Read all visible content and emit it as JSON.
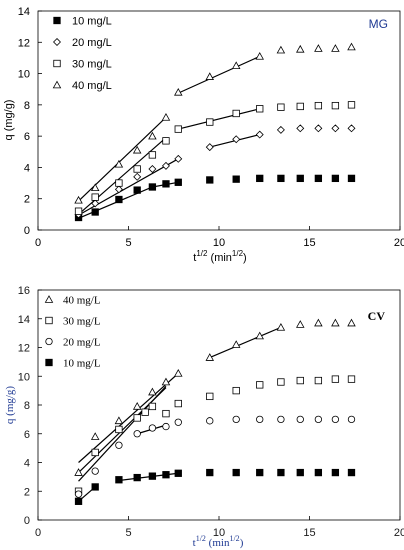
{
  "chart_data": [
    {
      "type": "scatter",
      "title": "MG",
      "xlabel": "t 1/2 (min1/2)",
      "xlabel_main": "t",
      "xlabel_sup": "1/2",
      "xlabel_unit": "(min",
      "xlabel_unit_sup": "1/2",
      "xlabel_unit_close": ")",
      "ylabel": "q (mg/g)",
      "xlim": [
        0,
        20
      ],
      "ylim": [
        0,
        14
      ],
      "xticks": [
        0,
        5,
        10,
        15,
        20
      ],
      "yticks": [
        0,
        2,
        4,
        6,
        8,
        10,
        12,
        14
      ],
      "xtick_labels": [
        "0",
        "5",
        "10",
        "15",
        "20"
      ],
      "ytick_labels": [
        "0",
        "2",
        "4",
        "6",
        "8",
        "10",
        "12",
        "14"
      ],
      "grid": false,
      "legend_position": "top-left",
      "series": [
        {
          "name": "10 mg/L",
          "marker": "square-filled",
          "x": [
            2.24,
            3.16,
            4.47,
            5.48,
            6.32,
            7.07,
            7.75,
            9.49,
            10.95,
            12.25,
            13.42,
            14.49,
            15.49,
            16.43,
            17.32
          ],
          "y": [
            0.8,
            1.15,
            1.95,
            2.55,
            2.75,
            2.95,
            3.05,
            3.2,
            3.25,
            3.3,
            3.3,
            3.3,
            3.3,
            3.3,
            3.3
          ],
          "fits": [
            [
              [
                2.24,
                0.75
              ],
              [
                6.32,
                2.75
              ]
            ],
            [
              [
                6.32,
                2.75
              ],
              [
                7.75,
                3.05
              ]
            ]
          ]
        },
        {
          "name": "20 mg/L",
          "marker": "diamond-open",
          "x": [
            2.24,
            3.16,
            4.47,
            5.48,
            6.32,
            7.07,
            7.75,
            9.49,
            10.95,
            12.25,
            13.42,
            14.49,
            15.49,
            16.43,
            17.32
          ],
          "y": [
            1.0,
            1.7,
            2.6,
            3.4,
            3.9,
            4.1,
            4.55,
            5.3,
            5.8,
            6.1,
            6.4,
            6.5,
            6.5,
            6.5,
            6.5
          ],
          "fits": [
            [
              [
                2.24,
                0.95
              ],
              [
                7.75,
                4.55
              ]
            ],
            [
              [
                9.49,
                5.3
              ],
              [
                12.25,
                6.1
              ]
            ]
          ]
        },
        {
          "name": "30 mg/L",
          "marker": "square-open",
          "x": [
            2.24,
            3.16,
            4.47,
            5.48,
            6.32,
            7.07,
            7.75,
            9.49,
            10.95,
            12.25,
            13.42,
            14.49,
            15.49,
            16.43,
            17.32
          ],
          "y": [
            1.2,
            2.1,
            3.0,
            3.9,
            4.8,
            5.7,
            6.45,
            6.9,
            7.45,
            7.75,
            7.85,
            7.9,
            7.95,
            7.95,
            8.0
          ],
          "fits": [
            [
              [
                2.24,
                1.0
              ],
              [
                7.07,
                5.9
              ]
            ],
            [
              [
                7.75,
                6.45
              ],
              [
                12.25,
                7.75
              ]
            ]
          ]
        },
        {
          "name": "40 mg/L",
          "marker": "triangle-open",
          "x": [
            2.24,
            3.16,
            4.47,
            5.48,
            6.32,
            7.07,
            7.75,
            9.49,
            10.95,
            12.25,
            13.42,
            14.49,
            15.49,
            16.43,
            17.32
          ],
          "y": [
            1.9,
            2.7,
            4.2,
            5.1,
            6.0,
            7.2,
            8.8,
            9.8,
            10.5,
            11.1,
            11.5,
            11.55,
            11.6,
            11.6,
            11.7
          ],
          "fits": [
            [
              [
                2.24,
                1.85
              ],
              [
                7.07,
                7.2
              ]
            ],
            [
              [
                7.75,
                8.75
              ],
              [
                12.25,
                11.1
              ]
            ]
          ]
        }
      ]
    },
    {
      "type": "scatter",
      "title": "CV",
      "xlabel": "t1/2 (min1/2)",
      "xlabel_main": "t",
      "xlabel_sup": "1/2",
      "xlabel_unit": "(min",
      "xlabel_unit_sup": "1/2",
      "xlabel_unit_close": ")",
      "ylabel": "q (mg/g)",
      "xlim": [
        0,
        20
      ],
      "ylim": [
        0,
        16
      ],
      "xticks": [
        0,
        5,
        10,
        15,
        20
      ],
      "yticks": [
        0,
        2,
        4,
        6,
        8,
        10,
        12,
        14,
        16
      ],
      "xtick_labels": [
        "0",
        "5",
        "10",
        "15",
        "20"
      ],
      "ytick_labels": [
        "0",
        "2",
        "4",
        "6",
        "8",
        "10",
        "12",
        "14",
        "16"
      ],
      "grid": false,
      "legend_position": "top-left",
      "series": [
        {
          "name": "40 mg/L",
          "marker": "triangle-open",
          "x": [
            2.24,
            3.16,
            4.47,
            5.48,
            6.32,
            7.07,
            7.75,
            9.49,
            10.95,
            12.25,
            13.42,
            14.49,
            15.49,
            16.43,
            17.32
          ],
          "y": [
            3.3,
            5.8,
            6.9,
            7.9,
            8.9,
            9.6,
            10.2,
            11.3,
            12.2,
            12.8,
            13.4,
            13.6,
            13.7,
            13.7,
            13.7
          ],
          "fits": [
            [
              [
                2.24,
                4.0
              ],
              [
                7.75,
                10.2
              ]
            ],
            [
              [
                9.49,
                11.3
              ],
              [
                13.42,
                13.4
              ]
            ]
          ]
        },
        {
          "name": "30 mg/L",
          "marker": "square-open",
          "x": [
            2.24,
            3.16,
            4.47,
            5.48,
            5.92,
            6.32,
            7.07,
            7.75,
            9.49,
            10.95,
            12.25,
            13.42,
            14.49,
            15.49,
            16.43,
            17.32
          ],
          "y": [
            2.0,
            4.7,
            6.3,
            7.1,
            7.5,
            7.9,
            7.4,
            8.1,
            8.6,
            9.0,
            9.4,
            9.6,
            9.7,
            9.7,
            9.8,
            9.8
          ],
          "fits": [
            [
              [
                2.24,
                3.3
              ],
              [
                7.07,
                9.2
              ]
            ]
          ]
        },
        {
          "name": "20 mg/L",
          "marker": "circle-open",
          "x": [
            2.24,
            3.16,
            4.47,
            5.48,
            6.32,
            7.07,
            7.75,
            9.49,
            10.95,
            12.25,
            13.42,
            14.49,
            15.49,
            16.43,
            17.32
          ],
          "y": [
            1.8,
            3.4,
            5.2,
            6.0,
            6.4,
            6.5,
            6.8,
            6.9,
            7.0,
            7.0,
            7.0,
            7.0,
            7.0,
            7.0,
            7.0
          ],
          "fits": [
            [
              [
                2.24,
                2.7
              ],
              [
                7.07,
                9.3
              ]
            ],
            [
              [
                5.48,
                6.0
              ],
              [
                7.07,
                6.6
              ]
            ]
          ]
        },
        {
          "name": "10 mg/L",
          "marker": "square-filled",
          "x": [
            2.24,
            3.16,
            4.47,
            5.48,
            6.32,
            7.07,
            7.75,
            9.49,
            10.95,
            12.25,
            13.42,
            14.49,
            15.49,
            16.43,
            17.32
          ],
          "y": [
            1.3,
            2.3,
            2.8,
            2.95,
            3.05,
            3.15,
            3.25,
            3.3,
            3.3,
            3.3,
            3.3,
            3.3,
            3.3,
            3.3,
            3.3
          ],
          "fits": [
            [
              [
                2.24,
                1.3
              ],
              [
                3.16,
                2.3
              ]
            ],
            [
              [
                4.47,
                2.75
              ],
              [
                7.75,
                3.25
              ]
            ]
          ]
        }
      ]
    }
  ]
}
